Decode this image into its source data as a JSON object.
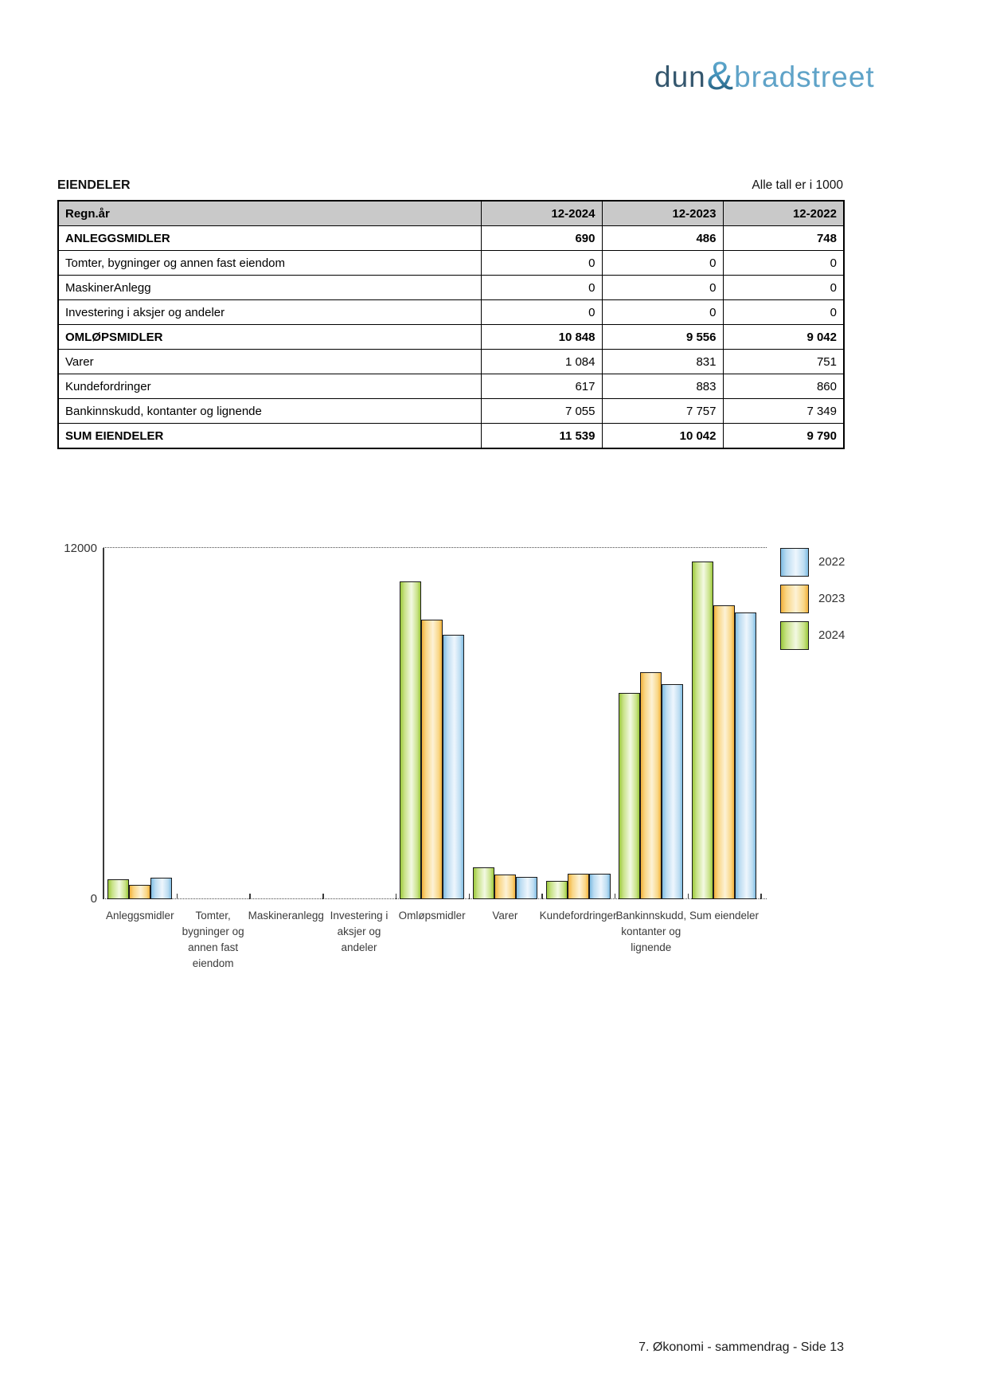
{
  "logo": {
    "part1": "dun",
    "amp": "&",
    "part2": "bradstreet"
  },
  "header": {
    "title": "EIENDELER",
    "note": "Alle tall er i 1000"
  },
  "table": {
    "columns": [
      "Regn.år",
      "12-2024",
      "12-2023",
      "12-2022"
    ],
    "rows": [
      {
        "label": "ANLEGGSMIDLER",
        "values": [
          "690",
          "486",
          "748"
        ],
        "bold": true
      },
      {
        "label": "Tomter, bygninger og annen fast eiendom",
        "values": [
          "0",
          "0",
          "0"
        ],
        "bold": false
      },
      {
        "label": "MaskinerAnlegg",
        "values": [
          "0",
          "0",
          "0"
        ],
        "bold": false
      },
      {
        "label": "Investering i aksjer og andeler",
        "values": [
          "0",
          "0",
          "0"
        ],
        "bold": false
      },
      {
        "label": "OMLØPSMIDLER",
        "values": [
          "10 848",
          "9 556",
          "9 042"
        ],
        "bold": true
      },
      {
        "label": "Varer",
        "values": [
          "1 084",
          "831",
          "751"
        ],
        "bold": false
      },
      {
        "label": "Kundefordringer",
        "values": [
          "617",
          "883",
          "860"
        ],
        "bold": false
      },
      {
        "label": "Bankinnskudd, kontanter og lignende",
        "values": [
          "7 055",
          "7 757",
          "7 349"
        ],
        "bold": false
      },
      {
        "label": "SUM EIENDELER",
        "values": [
          "11 539",
          "10 042",
          "9 790"
        ],
        "bold": true
      }
    ]
  },
  "chart_data": {
    "type": "bar",
    "title": "",
    "xlabel": "",
    "ylabel": "",
    "ylim": [
      0,
      12000
    ],
    "ymax_label": "12000",
    "ymin_label": "0",
    "grid": "dotted top gridline at 12000 and dotted baseline at 0",
    "legend_position": "right",
    "categories": [
      "Anleggsmidler",
      "Tomter, bygninger og annen fast eiendom",
      "Maskineranlegg",
      "Investering i aksjer og andeler",
      "Omløpsmidler",
      "Varer",
      "Kundefordringer",
      "Bankinnskudd, kontanter og lignende",
      "Sum eiendeler"
    ],
    "category_label_lines": [
      [
        "Anleggsmidler"
      ],
      [
        "Tomter,",
        "bygninger og",
        "annen fast",
        "eiendom"
      ],
      [
        "Maskineranlegg"
      ],
      [
        "Investering i",
        "aksjer og",
        "andeler"
      ],
      [
        "Omløpsmidler"
      ],
      [
        "Varer"
      ],
      [
        "Kundefordringer"
      ],
      [
        "Bankinnskudd,",
        "kontanter og",
        "lignende"
      ],
      [
        "Sum eiendeler"
      ]
    ],
    "series": [
      {
        "name": "2024",
        "color_edge": "#9CC93C",
        "color_mid": "#C8E287",
        "color_light": "#F3F9E3",
        "values": [
          690,
          0,
          0,
          0,
          10848,
          1084,
          617,
          7055,
          11539
        ]
      },
      {
        "name": "2023",
        "color_edge": "#F2B13C",
        "color_mid": "#F9D685",
        "color_light": "#FDF2D6",
        "values": [
          486,
          0,
          0,
          0,
          9556,
          831,
          883,
          7757,
          10042
        ]
      },
      {
        "name": "2022",
        "color_edge": "#7FBCE3",
        "color_mid": "#BBDCF1",
        "color_light": "#EEF6FD",
        "values": [
          748,
          0,
          0,
          0,
          9042,
          751,
          860,
          7349,
          9790
        ]
      }
    ],
    "legend": [
      {
        "label": "2022"
      },
      {
        "label": "2023"
      },
      {
        "label": "2024"
      }
    ]
  },
  "footer": {
    "text": "7. Økonomi - sammendrag - Side 13"
  }
}
